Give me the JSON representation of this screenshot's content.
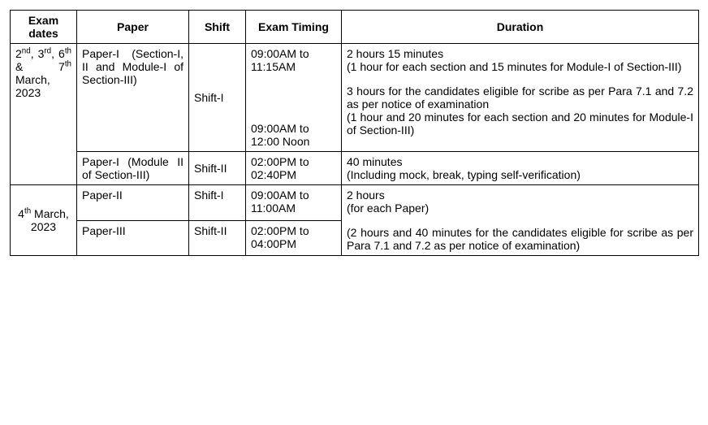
{
  "headers": {
    "dates": "Exam dates",
    "paper": "Paper",
    "shift": "Shift",
    "timing": "Exam Timing",
    "duration": "Duration"
  },
  "rows": {
    "r1": {
      "dates_html": "2<sup>nd</sup>, 3<sup>rd</sup>, 6<sup>th</sup> & 7<sup>th</sup> March, 2023",
      "paper": "Paper-I (Section-I, II and Module-I of Section-III)",
      "shift": "Shift-I",
      "timing1": "09:00AM to 11:15AM",
      "timing2": "09:00AM to 12:00 Noon",
      "duration1": "2 hours 15 minutes",
      "duration1b": "(1 hour for each section and 15 minutes for Module-I of Section-III)",
      "duration2": "3 hours for the candidates eligible for scribe as per Para 7.1 and 7.2 as per notice of examination",
      "duration2b": "(1 hour and 20 minutes for each section and 20 minutes for Module-I of Section-III)"
    },
    "r2": {
      "paper": "Paper-I (Module II of Section-III)",
      "shift": "Shift-II",
      "timing": "02:00PM to 02:40PM",
      "duration1": "40 minutes",
      "duration1b": "(Including mock, break, typing self-verification)"
    },
    "r3": {
      "dates_html": "4<sup>th</sup> March, 2023",
      "paper": "Paper-II",
      "shift": "Shift-I",
      "timing": "09:00AM to 11:00AM",
      "duration1": "2 hours",
      "duration1b": "(for each Paper)"
    },
    "r4": {
      "paper": "Paper-III",
      "shift": "Shift-II",
      "timing": "02:00PM to 04:00PM",
      "duration": "(2 hours and 40 minutes for the candidates eligible for scribe as per Para 7.1 and 7.2 as per notice of examination)"
    }
  }
}
